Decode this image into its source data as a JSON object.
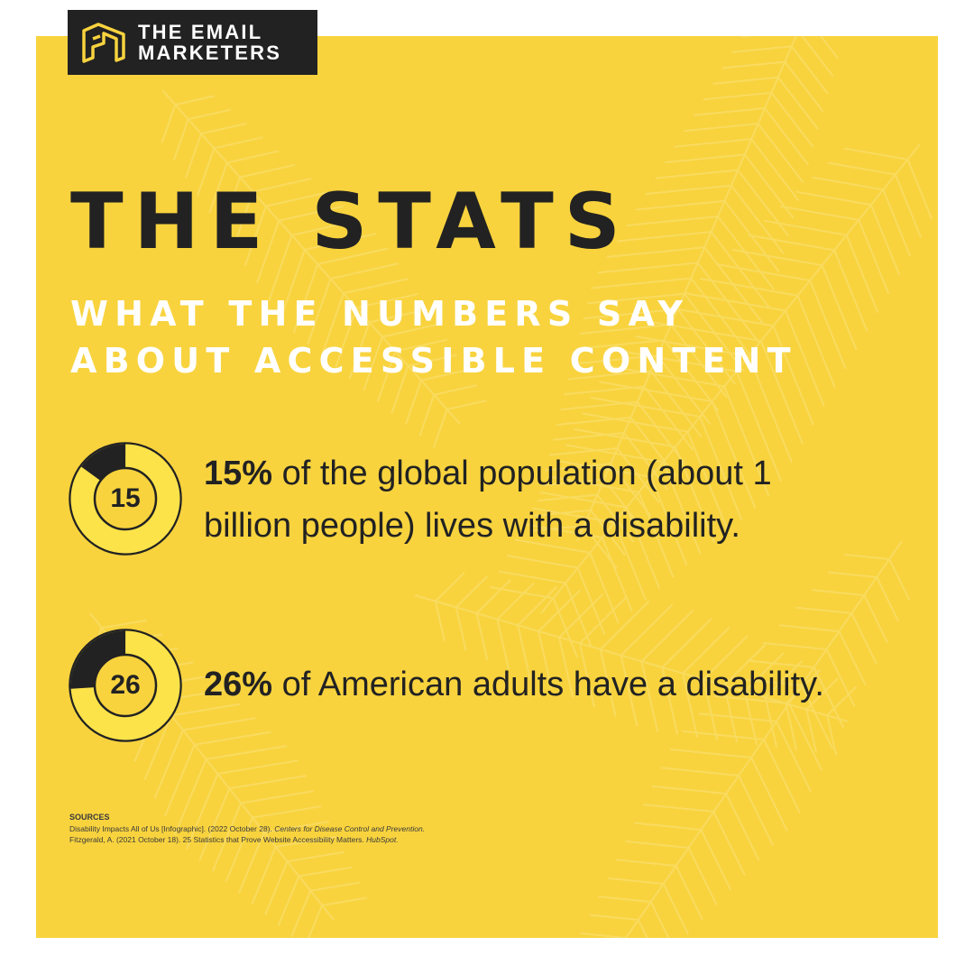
{
  "brand": {
    "line1": "THE EMAIL",
    "line2": "MARKETERS",
    "logo_icon": "em-monogram-icon",
    "accent_color": "#f8d33e",
    "dark_color": "#222222"
  },
  "title": "THE STATS",
  "subtitle": {
    "line1": "WHAT THE NUMBERS SAY",
    "line2": "ABOUT ACCESSIBLE CONTENT"
  },
  "stats": [
    {
      "ring_value": "15",
      "fraction": 0.15,
      "highlight": "15%",
      "line1": " of the global population (about 1",
      "line2": "billion people) lives with a disability."
    },
    {
      "ring_value": "26",
      "fraction": 0.26,
      "highlight": "26%",
      "line1": " of American adults have a disability."
    }
  ],
  "sources": {
    "heading": "SOURCES",
    "item1_main": "Disability Impacts All of Us [Infographic]. (2022 October 28). ",
    "item1_em": "Centers for Disease Control and Prevention.",
    "item2_main": "Fitzgerald, A. (2021 October 18). 25 Statistics that Prove Website Accessibility Matters. ",
    "item2_em": "HubSpot."
  }
}
